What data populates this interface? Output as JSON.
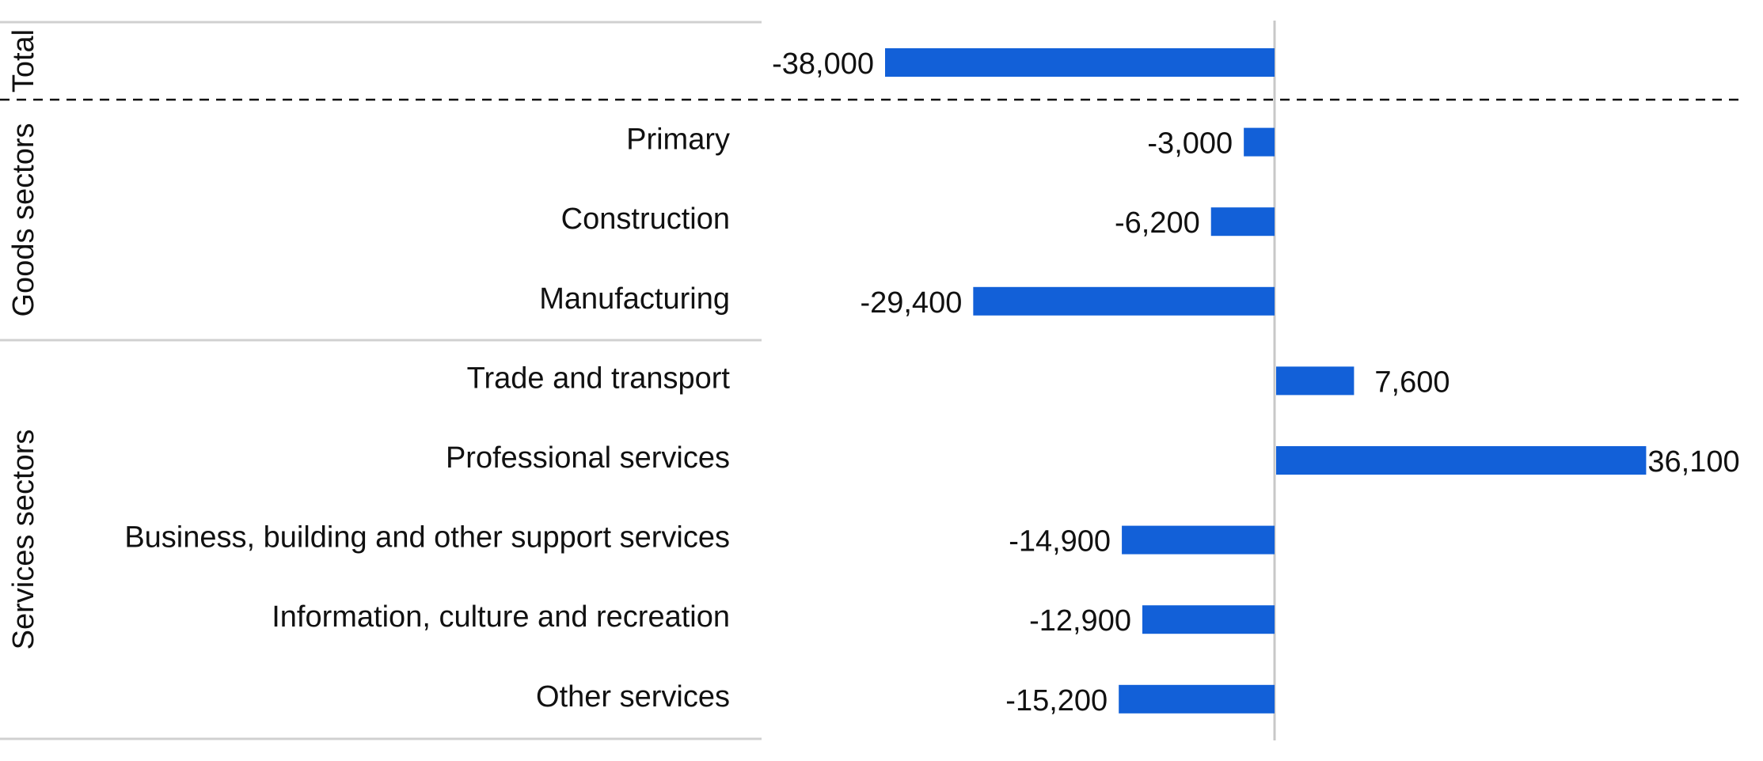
{
  "colors": {
    "bar": "#1260D8",
    "divider": "#d0d0d0",
    "axis": "#c8c8c8",
    "dashed": "#111111",
    "text": "#111111"
  },
  "chart_data": {
    "type": "bar",
    "orientation": "horizontal",
    "title": "",
    "xlabel": "",
    "ylabel": "",
    "xlim": [
      -38000,
      36100
    ],
    "grid": false,
    "legend": "none",
    "groups": [
      {
        "name": "Total",
        "categories": [
          ""
        ]
      },
      {
        "name": "Goods sectors",
        "categories": [
          "Primary",
          "Construction",
          "Manufacturing"
        ]
      },
      {
        "name": "Services sectors",
        "categories": [
          "Trade and transport",
          "Professional services",
          "Business, building and other support services",
          "Information, culture and recreation",
          "Other services"
        ]
      }
    ],
    "categories": [
      "",
      "Primary",
      "Construction",
      "Manufacturing",
      "Trade and transport",
      "Professional services",
      "Business, building and other support services",
      "Information, culture and recreation",
      "Other services"
    ],
    "values": [
      -38000,
      -3000,
      -6200,
      -29400,
      7600,
      36100,
      -14900,
      -12900,
      -15200
    ],
    "value_labels": [
      "-38,000",
      "-3,000",
      "-6,200",
      "-29,400",
      "7,600",
      "36,100",
      "-14,900",
      "-12,900",
      "-15,200"
    ]
  }
}
